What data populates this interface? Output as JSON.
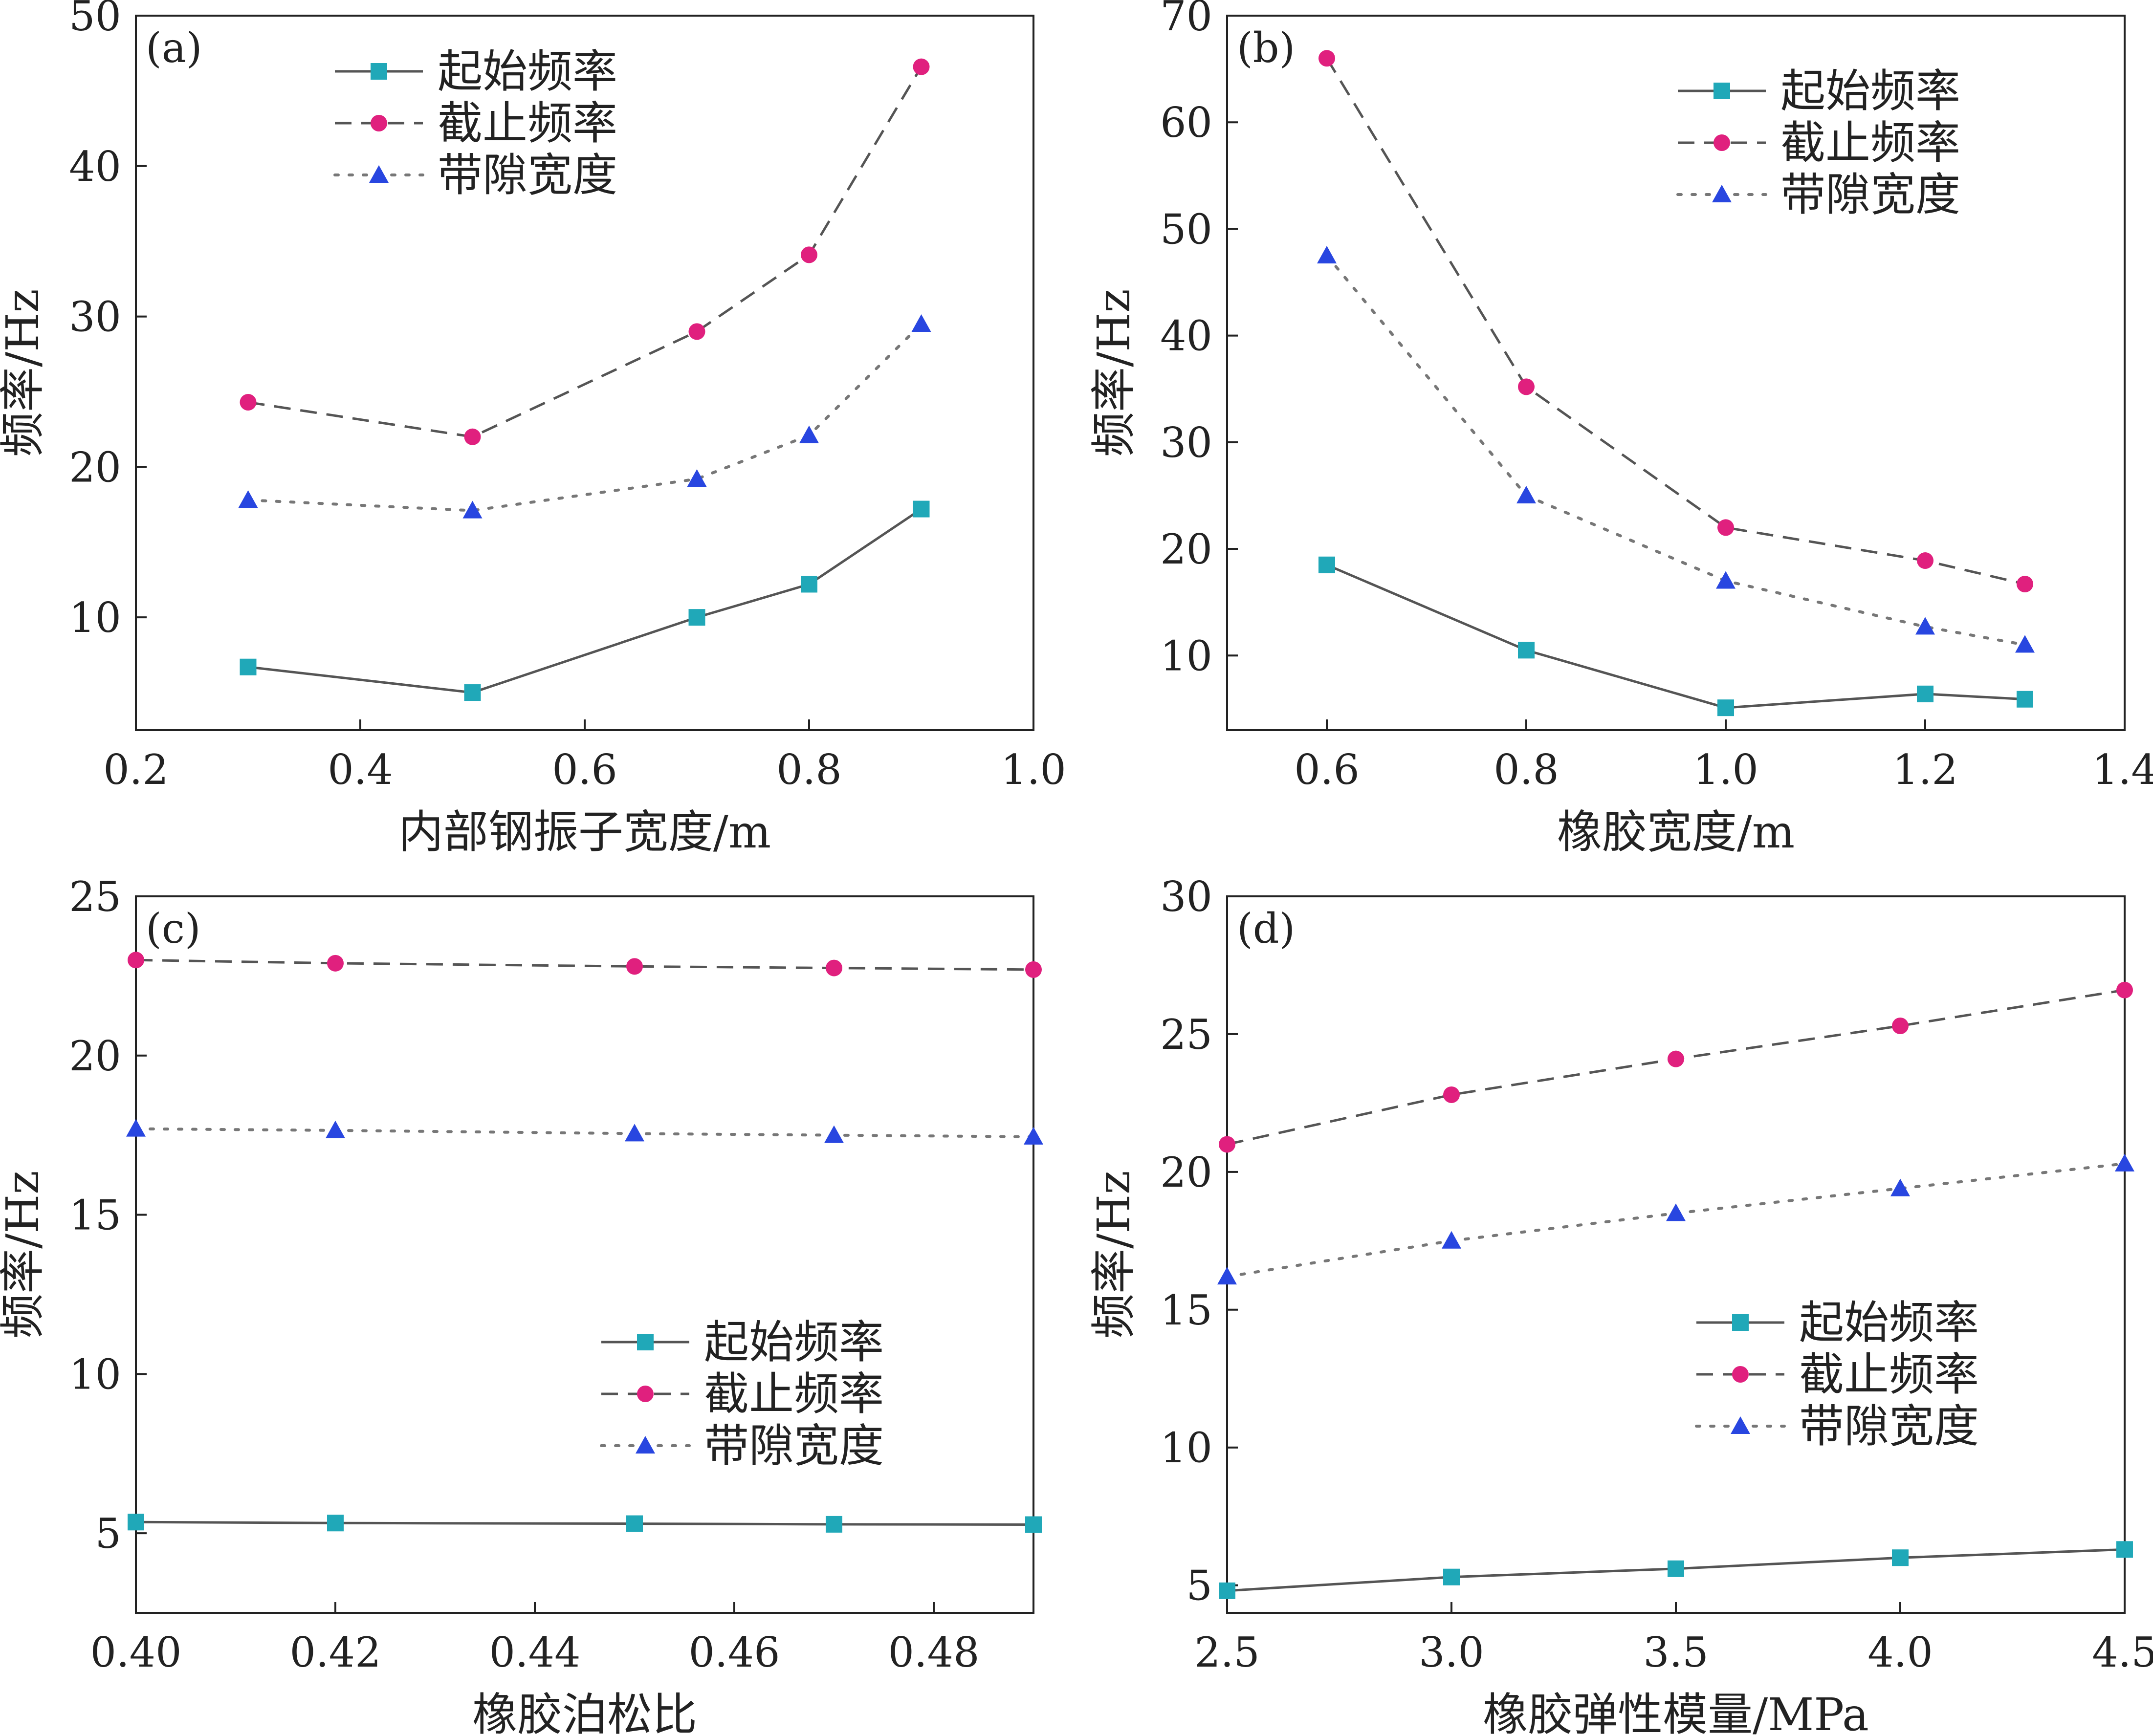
{
  "colors": {
    "start": "#20a8b8",
    "cutoff": "#e0207e",
    "width": "#2846e0",
    "line_start": "#555555",
    "line_cutoff": "#555555",
    "line_width": "#777777",
    "axis": "#222222"
  },
  "chart_data": [
    {
      "type": "line",
      "panel_tag": "(a)",
      "xlabel": "内部钢振子宽度/m",
      "ylabel": "频率/Hz",
      "xlim": [
        0.2,
        1.0
      ],
      "ylim": [
        2.5,
        50
      ],
      "xticks": [
        0.2,
        0.4,
        0.6,
        0.8,
        1.0
      ],
      "xtick_labels": [
        "0.2",
        "0.4",
        "0.6",
        "0.8",
        "1.0"
      ],
      "yticks": [
        10,
        20,
        30,
        40,
        50
      ],
      "ytick_labels": [
        "10",
        "20",
        "30",
        "40",
        "50"
      ],
      "legend_position": "top-center",
      "x": [
        0.3,
        0.5,
        0.7,
        0.8,
        0.9
      ],
      "series": [
        {
          "name": "起始频率",
          "key": "start",
          "values": [
            6.7,
            5.0,
            10.0,
            12.2,
            17.2
          ]
        },
        {
          "name": "截止频率",
          "key": "cutoff",
          "values": [
            24.3,
            22.0,
            29.0,
            34.1,
            46.6
          ]
        },
        {
          "name": "带隙宽度",
          "key": "width",
          "values": [
            17.8,
            17.1,
            19.2,
            22.1,
            29.5
          ]
        }
      ]
    },
    {
      "type": "line",
      "panel_tag": "(b)",
      "xlabel": "橡胶宽度/m",
      "ylabel": "频率/Hz",
      "xlim": [
        0.5,
        1.4
      ],
      "ylim": [
        3,
        70
      ],
      "xticks": [
        0.6,
        0.8,
        1.0,
        1.2,
        1.4
      ],
      "xtick_labels": [
        "0.6",
        "0.8",
        "1.0",
        "1.2",
        "1.4"
      ],
      "yticks": [
        10,
        20,
        30,
        40,
        50,
        60,
        70
      ],
      "ytick_labels": [
        "10",
        "20",
        "30",
        "40",
        "50",
        "60",
        "70"
      ],
      "legend_position": "top-right",
      "x": [
        0.6,
        0.8,
        1.0,
        1.2,
        1.3
      ],
      "series": [
        {
          "name": "起始频率",
          "key": "start",
          "values": [
            18.5,
            10.5,
            5.1,
            6.4,
            5.9
          ]
        },
        {
          "name": "截止频率",
          "key": "cutoff",
          "values": [
            66.0,
            35.2,
            22.0,
            18.9,
            16.7
          ]
        },
        {
          "name": "带隙宽度",
          "key": "width",
          "values": [
            47.5,
            25.0,
            17.0,
            12.7,
            11.0
          ]
        }
      ]
    },
    {
      "type": "line",
      "panel_tag": "(c)",
      "xlabel": "橡胶泊松比",
      "ylabel": "频率/Hz",
      "xlim": [
        0.4,
        0.49
      ],
      "ylim": [
        2.5,
        25
      ],
      "xticks": [
        0.4,
        0.42,
        0.44,
        0.46,
        0.48
      ],
      "xtick_labels": [
        "0.40",
        "0.42",
        "0.44",
        "0.46",
        "0.48"
      ],
      "yticks": [
        5,
        10,
        15,
        20,
        25
      ],
      "ytick_labels": [
        "5",
        "10",
        "15",
        "20",
        "25"
      ],
      "legend_position": "bottom-right",
      "x": [
        0.4,
        0.42,
        0.45,
        0.47,
        0.49
      ],
      "series": [
        {
          "name": "起始频率",
          "key": "start",
          "values": [
            5.35,
            5.32,
            5.3,
            5.28,
            5.27
          ]
        },
        {
          "name": "截止频率",
          "key": "cutoff",
          "values": [
            23.0,
            22.9,
            22.8,
            22.75,
            22.7
          ]
        },
        {
          "name": "带隙宽度",
          "key": "width",
          "values": [
            17.7,
            17.65,
            17.55,
            17.5,
            17.45
          ]
        }
      ]
    },
    {
      "type": "line",
      "panel_tag": "(d)",
      "xlabel": "橡胶弹性模量/MPa",
      "ylabel": "频率/Hz",
      "xlim": [
        2.5,
        4.5
      ],
      "ylim": [
        4,
        30
      ],
      "xticks": [
        2.5,
        3.0,
        3.5,
        4.0,
        4.5
      ],
      "xtick_labels": [
        "2.5",
        "3.0",
        "3.5",
        "4.0",
        "4.5"
      ],
      "yticks": [
        5,
        10,
        15,
        20,
        25,
        30
      ],
      "ytick_labels": [
        "5",
        "10",
        "15",
        "20",
        "25",
        "30"
      ],
      "legend_position": "lower-right",
      "x": [
        2.5,
        3.0,
        3.5,
        4.0,
        4.5
      ],
      "series": [
        {
          "name": "起始频率",
          "key": "start",
          "values": [
            4.8,
            5.3,
            5.6,
            6.0,
            6.3
          ]
        },
        {
          "name": "截止频率",
          "key": "cutoff",
          "values": [
            21.0,
            22.8,
            24.1,
            25.3,
            26.6
          ]
        },
        {
          "name": "带隙宽度",
          "key": "width",
          "values": [
            16.2,
            17.5,
            18.5,
            19.4,
            20.3
          ]
        }
      ]
    }
  ]
}
